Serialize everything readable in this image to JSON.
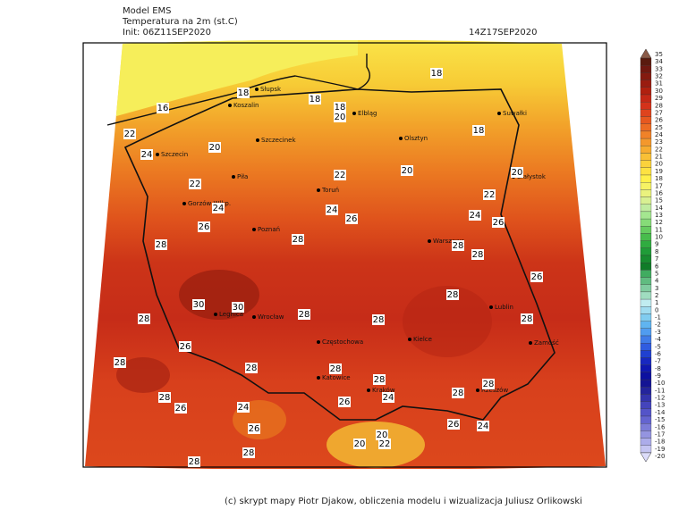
{
  "header": {
    "model": "Model EMS",
    "variable": "Temperatura na 2m (st.C)",
    "init": "Init: 06Z11SEP2020",
    "valid": "14Z17SEP2020"
  },
  "footer": "(c) skrypt mapy Piotr Djakow, obliczenia modelu i wizualizacja Juliusz Orlikowski",
  "colorbar": {
    "levels": [
      35,
      34,
      33,
      32,
      31,
      30,
      29,
      28,
      27,
      26,
      25,
      24,
      23,
      22,
      21,
      20,
      19,
      18,
      17,
      16,
      15,
      14,
      13,
      12,
      11,
      10,
      9,
      8,
      7,
      6,
      5,
      4,
      3,
      2,
      1,
      0,
      -1,
      -2,
      -3,
      -4,
      -5,
      -6,
      -7,
      -8,
      -9,
      -10,
      -11,
      -12,
      -13,
      -14,
      -15,
      -16,
      -17,
      -18,
      -19,
      -20
    ],
    "colors": [
      "#8a5a48",
      "#5a1a0e",
      "#701810",
      "#841a10",
      "#9a1c10",
      "#b0200f",
      "#c42816",
      "#d4321a",
      "#de441e",
      "#e65820",
      "#ec6c24",
      "#f08228",
      "#f4982c",
      "#f7ac30",
      "#f9c036",
      "#fbd23c",
      "#fde242",
      "#fff04a",
      "#f6f264",
      "#eaf27e",
      "#d8f092",
      "#c0eca0",
      "#a4e690",
      "#86dc78",
      "#66cc60",
      "#48bc4c",
      "#30ac40",
      "#209c38",
      "#188c30",
      "#107c28",
      "#40ac60",
      "#60bc80",
      "#80cca0",
      "#a0dcc0",
      "#c0ecf0",
      "#a0dcf0",
      "#80ccf0",
      "#60b4f0",
      "#509cf0",
      "#407ce8",
      "#305ce0",
      "#2040d0",
      "#1828c0",
      "#1018b0",
      "#0c10a0",
      "#141494",
      "#24249c",
      "#3434ac",
      "#4444bc",
      "#5454c8",
      "#6464d0",
      "#7c7cd8",
      "#9494e0",
      "#acacea",
      "#c4c4f2",
      "#dcdcfa"
    ]
  },
  "contour_labels": [
    18,
    18,
    18,
    18,
    20,
    16,
    18,
    22,
    24,
    20,
    22,
    20,
    20,
    22,
    22,
    24,
    24,
    26,
    24,
    26,
    26,
    28,
    28,
    28,
    28,
    26,
    28,
    30,
    30,
    28,
    28,
    28,
    28,
    26,
    28,
    28,
    28,
    28,
    24,
    28,
    28,
    28,
    26,
    24,
    26,
    26,
    26,
    24,
    20,
    20,
    22,
    28,
    28
  ],
  "cities": [
    "Słupsk",
    "Koszalin",
    "Elbląg",
    "Olsztyn",
    "Suwałki",
    "Szczecinek",
    "Szczecin",
    "Piła",
    "Toruń",
    "Białystok",
    "Gorzów Wlkp.",
    "Poznań",
    "Warszawa",
    "Legnica",
    "Wrocław",
    "Lublin",
    "Częstochowa",
    "Kielce",
    "Zamość",
    "Katowice",
    "Kraków",
    "Rzeszów"
  ]
}
